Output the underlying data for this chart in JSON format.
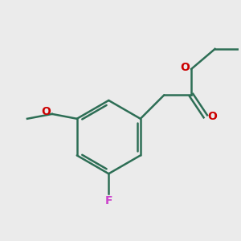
{
  "background_color": "#ebebeb",
  "bond_color": "#2d6e55",
  "O_color": "#cc0000",
  "F_color": "#cc44cc",
  "bond_width": 1.8,
  "figsize": [
    3.0,
    3.0
  ],
  "dpi": 100,
  "xlim": [
    0,
    10
  ],
  "ylim": [
    0,
    10
  ]
}
